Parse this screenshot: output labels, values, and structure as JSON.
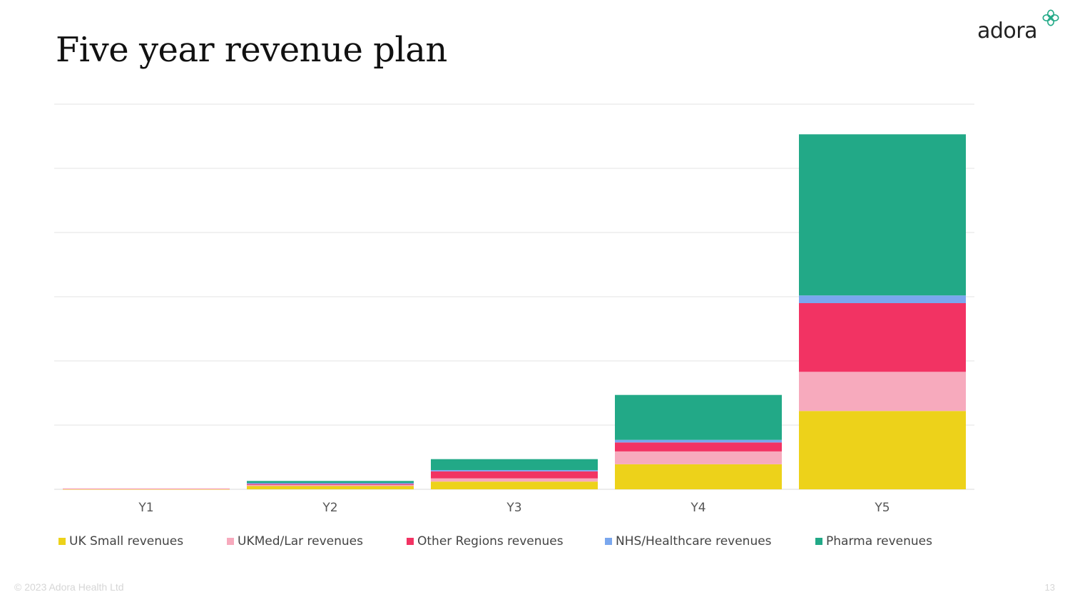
{
  "title": "Five year revenue plan",
  "logo": {
    "text": "adora",
    "icon": "adora-flower-icon"
  },
  "footer": {
    "copyright": "© 2023 Adora Health Ltd",
    "page_number": "13"
  },
  "chart_data": {
    "type": "bar",
    "stacked": true,
    "categories": [
      "Y1",
      "Y2",
      "Y3",
      "Y4",
      "Y5"
    ],
    "ylim": [
      0,
      6
    ],
    "grid": true,
    "legend_position": "bottom",
    "series": [
      {
        "name": "UK Small revenues",
        "color": "#EDD21A",
        "values": [
          0.01,
          0.05,
          0.12,
          0.39,
          1.22
        ]
      },
      {
        "name": "UKMed/Lar revenues",
        "color": "#F7AABD",
        "values": [
          0.005,
          0.02,
          0.05,
          0.2,
          0.61
        ]
      },
      {
        "name": "Other Regions revenues",
        "color": "#F23363",
        "values": [
          0.0,
          0.02,
          0.11,
          0.14,
          1.07
        ]
      },
      {
        "name": "NHS/Healthcare revenues",
        "color": "#7AA7EE",
        "values": [
          0.0,
          0.01,
          0.02,
          0.04,
          0.12
        ]
      },
      {
        "name": "Pharma revenues",
        "color": "#22A987",
        "values": [
          0.0,
          0.03,
          0.17,
          0.7,
          2.51
        ]
      }
    ],
    "title": "",
    "xlabel": "",
    "ylabel": ""
  }
}
